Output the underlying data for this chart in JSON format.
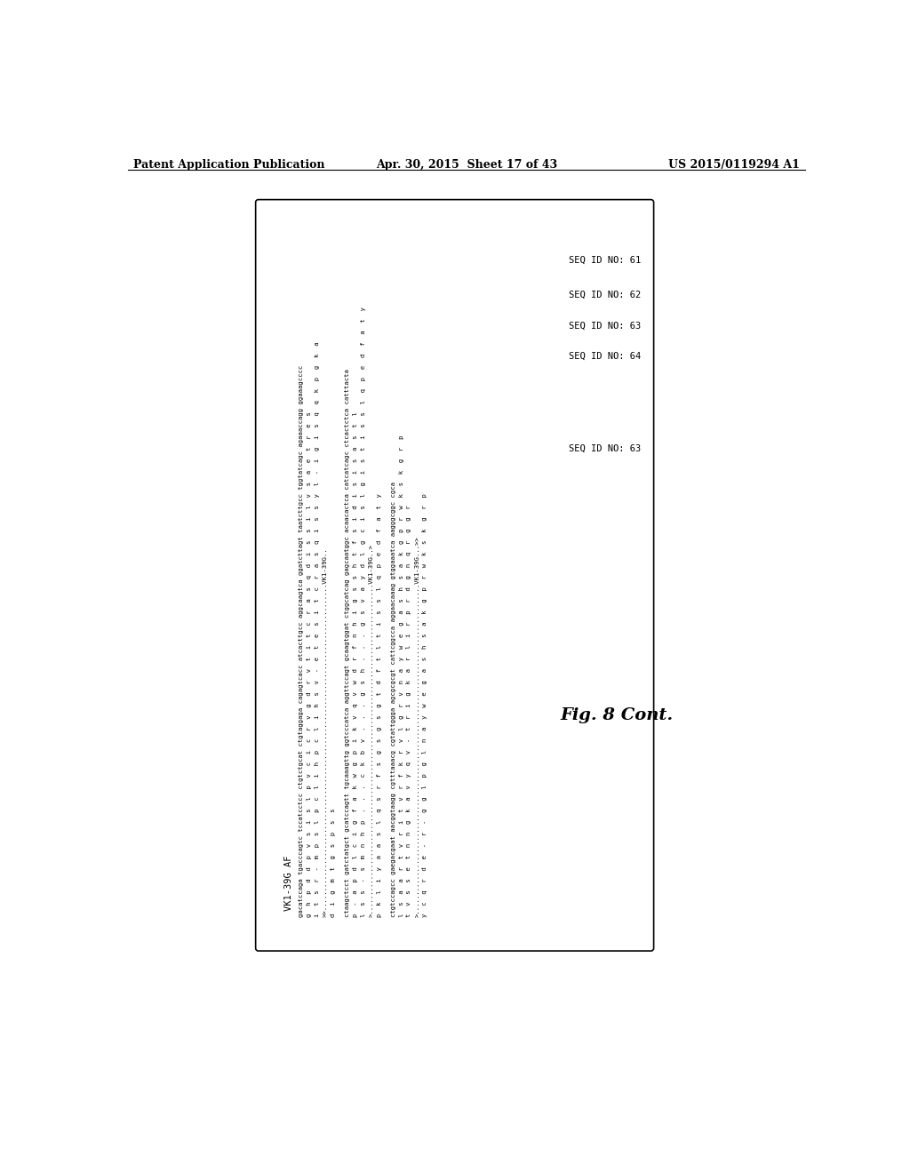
{
  "background_color": "#ffffff",
  "header_left": "Patent Application Publication",
  "header_center": "Apr. 30, 2015  Sheet 17 of 43",
  "header_right": "US 2015/0119294 A1",
  "figure_label": "Fig. 8 Cont.",
  "section_title": "VK1-39G AF",
  "block1": [
    "gacatccaga tgacccagtc tccatcctcc ctgtctgcat ctgtaggaga cagagtcacc atcacttgcc aggcaagtca ggatcttagt taatcttgcc tggtatcagc agaaaccagg ggaaagcccc",
    "g  h  p  d  d  p  v  s  i  s  l  p  v  c  i  c  r  v  g  d  r  v  t  i  t  c  r  a  s  q  d  i  s  s  i  l  v  s  a  e  t  r  e  s",
    "i  t  s  r  -  m  p  s  l  p  c  l  i  h  p  c  l  i  h  s  v  -  e  t  e  s  i  t  c  r  a  s  q  i  s  s  y  l  -  i  g  i  s  q  q  k  p  g  k  a",
    ">>....................................................................................VK1-39G..",
    "d  i  g  m  t  g  s  p  s  s"
  ],
  "block2": [
    "ctaagctcct gatctatgct gcatccagtt tgcaaagttg ggtcccatca aggttccagt gcaagtggat ctggcatcag gagcaatggc acaacactca catcatcagc ctcactctca catttacta",
    "p  -  a  p  d  l  c  i  g  f  a  k  w  g  p  i  k  v  q  v  w  d  r  f  n  h  i  g  s  s  h  t  f  s  i  d  i  s  i  s  a  s  t  l",
    "l  s  s  -  s  m  n  h  p  .  .  .  c  k  b  v  .  .  .  g  s  h  .  .  .  g  s  v  a  y  d  l  g  c  i  s  l  g  i  s  t  i  s  s  l  q  p  e  d  f  a  t  y",
    ">.....................................................................................VK1-39G..>",
    "p  k  l  i  y  a  a  s  l  q  s  r  f  s  g  s  g  s  g  t  d  f  t  l  t  i  s  s  l  q  p  e  d  f  a  t  y"
  ],
  "block3": [
    "ctgtccagcc gaegacgaat aacggtaagg cgtttaaacg cgtattggga agcgcgcgt cattcggcca aggaacaaag gtggaaatca aagggcggc cgca",
    "l  s  a  a  r  t  v  r  i  t  v  r  f  k  r  v  l  g  r  v  n  a  y  w  e  g  a  s  h  s  a  k  g  p  r  w  k  s  k  g  r  p",
    "t  v  s  s  e  t  n  n  g  k  a  v  y  q  v  -  t  r  i  g  k  a  r  l  i  r  p  r  d  g  n  q  r  g  g  r",
    ">.....................................................................................VK1-39G...>>",
    "y  c  q  r  d  e  -  r  -  g  g  l  p  g  l  n  a  y  w  e  g  a  s  h  s  a  k  g  p  r  w  k  s  k  g  r  p"
  ],
  "seq_ids_right": [
    "SEQ ID NO: 61",
    "SEQ ID NO: 62",
    "SEQ ID NO: 63",
    "SEQ ID NO: 64"
  ],
  "seq_id_bottom": "SEQ ID NO: 63"
}
